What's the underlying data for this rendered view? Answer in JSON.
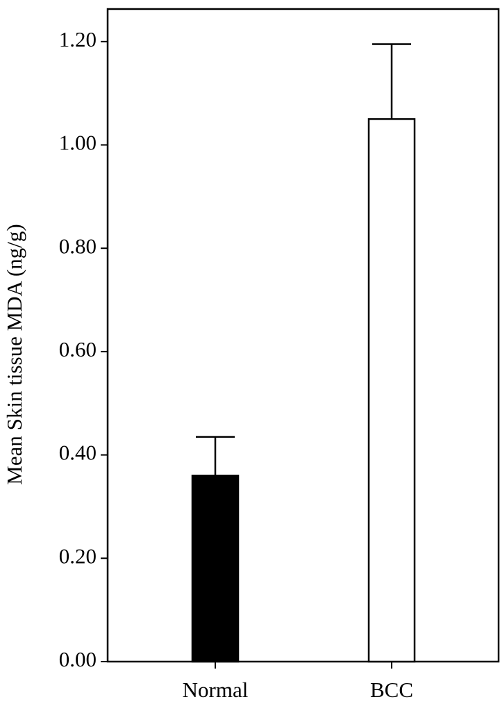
{
  "chart_data": {
    "type": "bar",
    "y_label": "Mean Skin tissue MDA (ng/g)",
    "categories": [
      "Normal",
      "BCC"
    ],
    "values": [
      0.36,
      1.05
    ],
    "errors": [
      0.075,
      0.145
    ],
    "colors": [
      "#000000",
      "#ffffff"
    ],
    "ylim": [
      0,
      1.263
    ],
    "yticks": [
      {
        "value": 0,
        "label": "0.00"
      },
      {
        "value": 0.2,
        "label": "0.20"
      },
      {
        "value": 0.4,
        "label": "0.40"
      },
      {
        "value": 0.6,
        "label": "0.60"
      },
      {
        "value": 0.8,
        "label": "0.80"
      },
      {
        "value": 1.0,
        "label": "1.00"
      },
      {
        "value": 1.2,
        "label": "1.20"
      }
    ]
  }
}
